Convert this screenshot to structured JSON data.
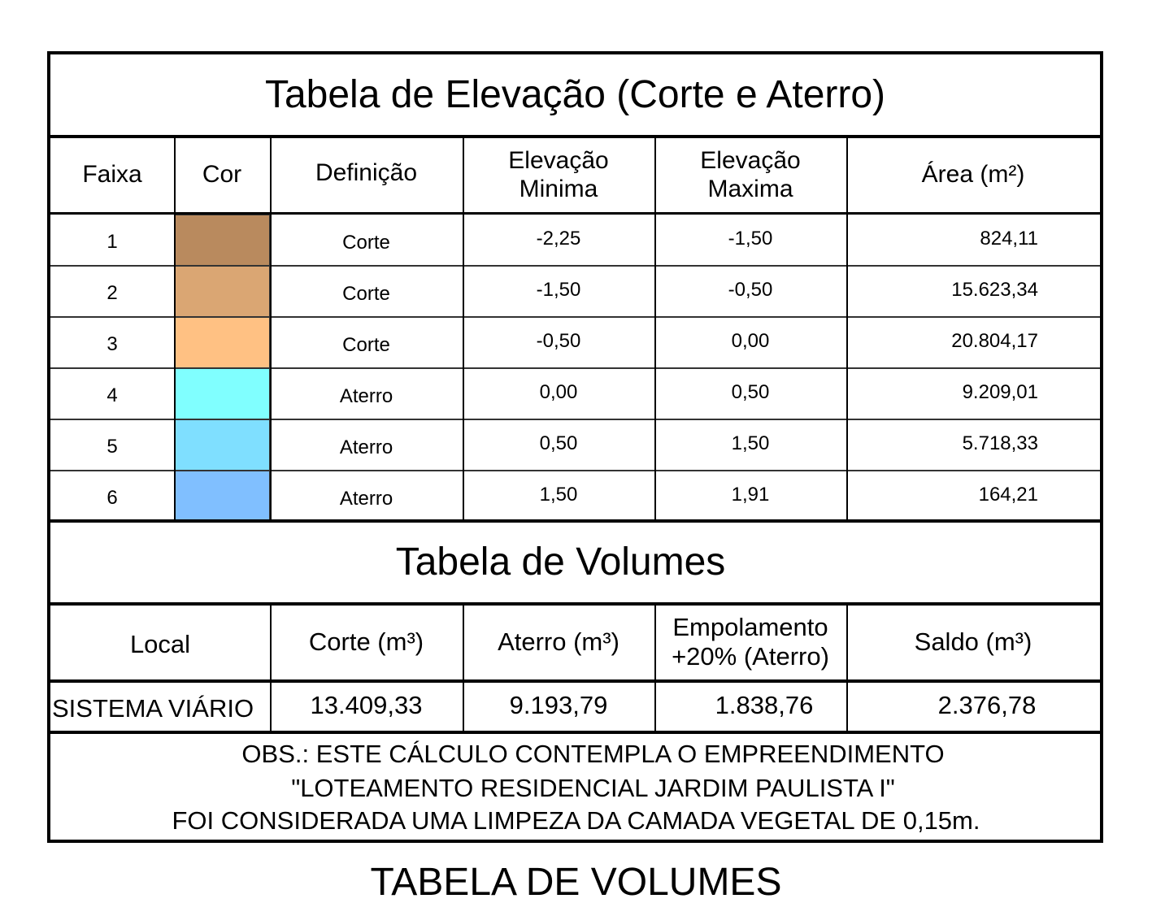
{
  "elevation_table": {
    "title": "Tabela de Elevação (Corte e Aterro)",
    "headers": {
      "faixa": "Faixa",
      "cor": "Cor",
      "definicao": "Definição",
      "elev_min": "Elevação\nMinima",
      "elev_max": "Elevação\nMaxima",
      "area": "Área (m²)"
    },
    "rows": [
      {
        "faixa": "1",
        "color": "#B98A5E",
        "definicao": "Corte",
        "elev_min": "-2,25",
        "elev_max": "-1,50",
        "area": "824,11"
      },
      {
        "faixa": "2",
        "color": "#DAA673",
        "definicao": "Corte",
        "elev_min": "-1,50",
        "elev_max": "-0,50",
        "area": "15.623,34"
      },
      {
        "faixa": "3",
        "color": "#FFC183",
        "definicao": "Corte",
        "elev_min": "-0,50",
        "elev_max": "0,00",
        "area": "20.804,17"
      },
      {
        "faixa": "4",
        "color": "#80FFFF",
        "definicao": "Aterro",
        "elev_min": "0,00",
        "elev_max": "0,50",
        "area": "9.209,01"
      },
      {
        "faixa": "5",
        "color": "#7FDFFF",
        "definicao": "Aterro",
        "elev_min": "0,50",
        "elev_max": "1,50",
        "area": "5.718,33"
      },
      {
        "faixa": "6",
        "color": "#80BFFF",
        "definicao": "Aterro",
        "elev_min": "1,50",
        "elev_max": "1,91",
        "area": "164,21"
      }
    ]
  },
  "volume_table": {
    "title": "Tabela de Volumes",
    "headers": {
      "local": "Local",
      "corte": "Corte (m³)",
      "aterro": "Aterro (m³)",
      "empolamento": "Empolamento\n+20% (Aterro)",
      "saldo": "Saldo (m³)"
    },
    "rows": [
      {
        "local": "SISTEMA VIÁRIO",
        "corte": "13.409,33",
        "aterro": "9.193,79",
        "empolamento": "1.838,76",
        "saldo": "2.376,78"
      }
    ]
  },
  "observations": {
    "line1": "OBS.: ESTE CÁLCULO CONTEMPLA O EMPREENDIMENTO",
    "line2": "\"LOTEAMENTO RESIDENCIAL JARDIM PAULISTA I\"",
    "line3": "FOI CONSIDERADA UMA LIMPEZA DA CAMADA VEGETAL DE 0,15m."
  },
  "caption": "TABELA DE VOLUMES"
}
